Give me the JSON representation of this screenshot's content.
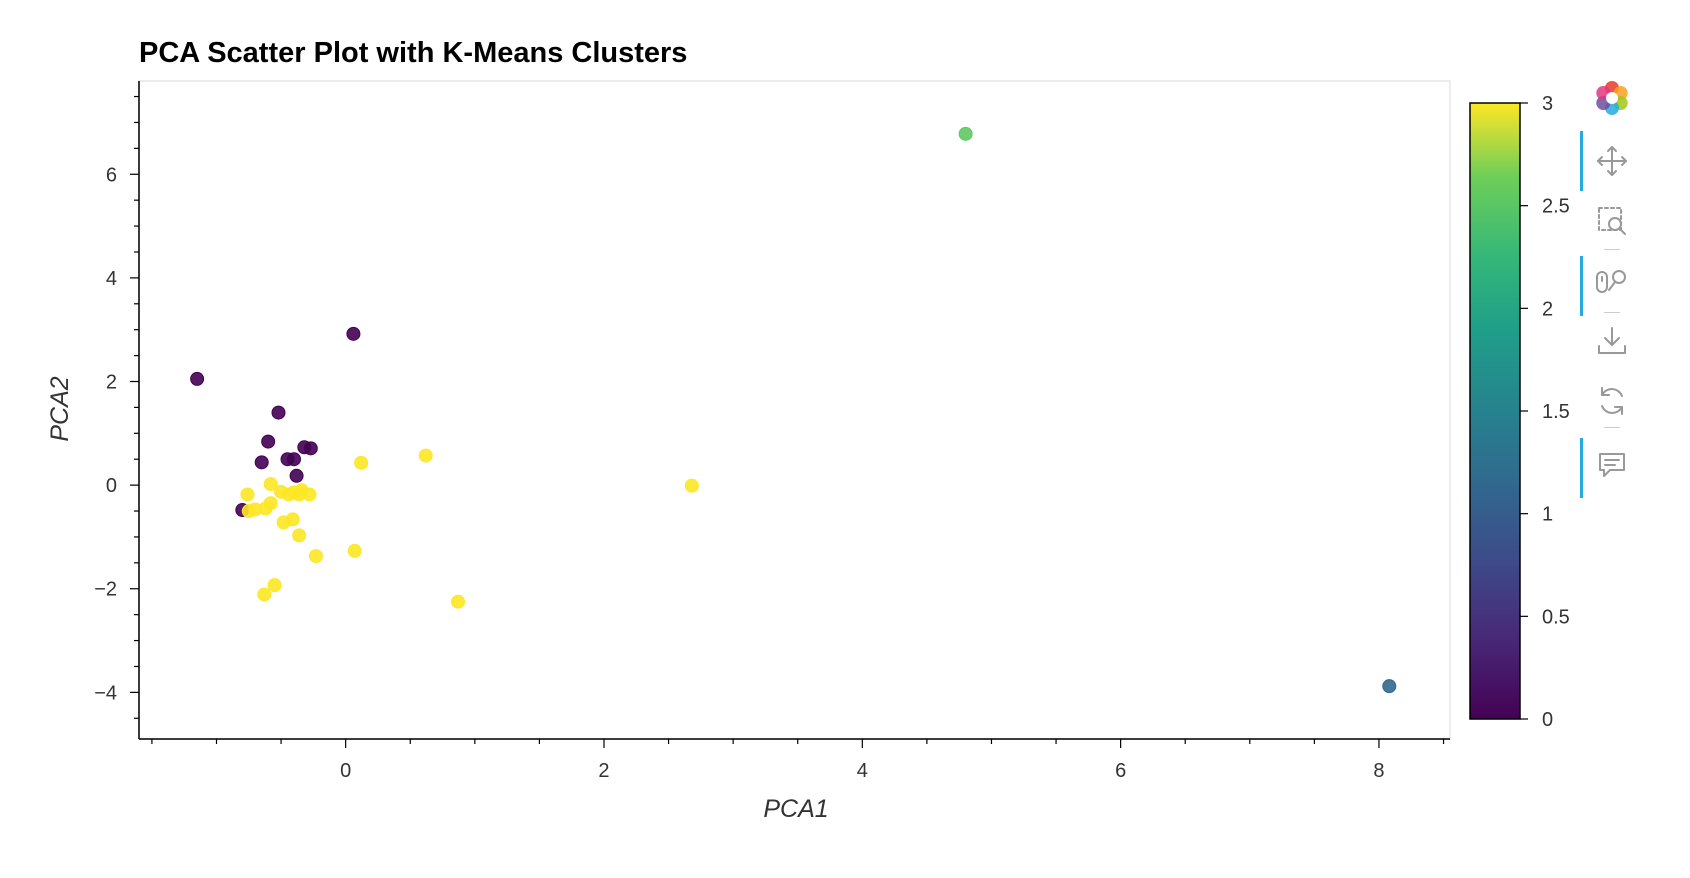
{
  "chart_data": {
    "type": "scatter",
    "title": "PCA Scatter Plot with K-Means Clusters",
    "xlabel": "PCA1",
    "ylabel": "PCA2",
    "xlim": [
      -1.6,
      8.55
    ],
    "ylim": [
      -4.9,
      7.8
    ],
    "xticks": [
      0,
      2,
      4,
      6,
      8
    ],
    "yticks": [
      -4,
      -2,
      0,
      2,
      4,
      6
    ],
    "grid": false,
    "colorbar": {
      "min": 0,
      "max": 3,
      "ticks": [
        "0",
        "0.5",
        "1",
        "1.5",
        "2",
        "2.5",
        "3"
      ],
      "colormap": "viridis"
    },
    "points": [
      {
        "x": -1.15,
        "y": 2.05,
        "cluster": 0
      },
      {
        "x": 0.06,
        "y": 2.92,
        "cluster": 0
      },
      {
        "x": -0.52,
        "y": 1.4,
        "cluster": 0
      },
      {
        "x": -0.6,
        "y": 0.84,
        "cluster": 0
      },
      {
        "x": -0.32,
        "y": 0.73,
        "cluster": 0
      },
      {
        "x": -0.27,
        "y": 0.71,
        "cluster": 0
      },
      {
        "x": -0.45,
        "y": 0.5,
        "cluster": 0
      },
      {
        "x": -0.4,
        "y": 0.5,
        "cluster": 0
      },
      {
        "x": -0.65,
        "y": 0.44,
        "cluster": 0
      },
      {
        "x": -0.38,
        "y": 0.18,
        "cluster": 0
      },
      {
        "x": -0.8,
        "y": -0.48,
        "cluster": 0
      },
      {
        "x": 4.8,
        "y": 6.78,
        "cluster": 2
      },
      {
        "x": 8.08,
        "y": -3.88,
        "cluster": 1
      },
      {
        "x": 0.12,
        "y": 0.43,
        "cluster": 3
      },
      {
        "x": 0.62,
        "y": 0.57,
        "cluster": 3
      },
      {
        "x": 2.68,
        "y": -0.01,
        "cluster": 3
      },
      {
        "x": -0.58,
        "y": 0.02,
        "cluster": 3
      },
      {
        "x": -0.76,
        "y": -0.18,
        "cluster": 3
      },
      {
        "x": -0.5,
        "y": -0.13,
        "cluster": 3
      },
      {
        "x": -0.44,
        "y": -0.18,
        "cluster": 3
      },
      {
        "x": -0.4,
        "y": -0.14,
        "cluster": 3
      },
      {
        "x": -0.36,
        "y": -0.18,
        "cluster": 3
      },
      {
        "x": -0.34,
        "y": -0.1,
        "cluster": 3
      },
      {
        "x": -0.28,
        "y": -0.18,
        "cluster": 3
      },
      {
        "x": -0.58,
        "y": -0.35,
        "cluster": 3
      },
      {
        "x": -0.62,
        "y": -0.45,
        "cluster": 3
      },
      {
        "x": -0.7,
        "y": -0.47,
        "cluster": 3
      },
      {
        "x": -0.75,
        "y": -0.5,
        "cluster": 3
      },
      {
        "x": -0.48,
        "y": -0.72,
        "cluster": 3
      },
      {
        "x": -0.41,
        "y": -0.66,
        "cluster": 3
      },
      {
        "x": -0.36,
        "y": -0.97,
        "cluster": 3
      },
      {
        "x": -0.23,
        "y": -1.37,
        "cluster": 3
      },
      {
        "x": 0.07,
        "y": -1.27,
        "cluster": 3
      },
      {
        "x": -0.55,
        "y": -1.93,
        "cluster": 3
      },
      {
        "x": -0.63,
        "y": -2.11,
        "cluster": 3
      },
      {
        "x": 0.87,
        "y": -2.25,
        "cluster": 3
      }
    ]
  },
  "toolbar": {
    "logo": "bokeh-logo-icon",
    "tools": [
      {
        "name": "pan-icon",
        "active": true
      },
      {
        "name": "box-zoom-icon",
        "active": false
      },
      {
        "name": "wheel-zoom-icon",
        "active": true
      },
      {
        "name": "save-icon",
        "active": false
      },
      {
        "name": "reset-icon",
        "active": false
      },
      {
        "name": "hover-icon",
        "active": true
      }
    ]
  }
}
